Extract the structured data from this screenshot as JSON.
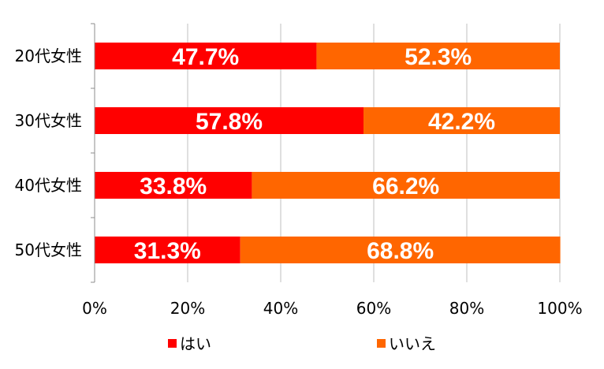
{
  "chart_data": {
    "type": "bar",
    "orientation": "horizontal",
    "stacked": true,
    "percent": true,
    "categories": [
      "20代女性",
      "30代女性",
      "40代女性",
      "50代女性"
    ],
    "series": [
      {
        "name": "はい",
        "values": [
          47.7,
          57.8,
          33.8,
          31.3
        ],
        "color": "#ff0000"
      },
      {
        "name": "いいえ",
        "values": [
          52.3,
          42.2,
          66.2,
          68.8
        ],
        "color": "#ff6600"
      }
    ],
    "data_labels": [
      [
        "47.7%",
        "57.8%",
        "33.8%",
        "31.3%"
      ],
      [
        "52.3%",
        "42.2%",
        "66.2%",
        "68.8%"
      ]
    ],
    "xlim": [
      0,
      100
    ],
    "x_ticks": [
      "0%",
      "20%",
      "40%",
      "60%",
      "80%",
      "100%"
    ],
    "grid": true,
    "legend_position": "bottom"
  }
}
